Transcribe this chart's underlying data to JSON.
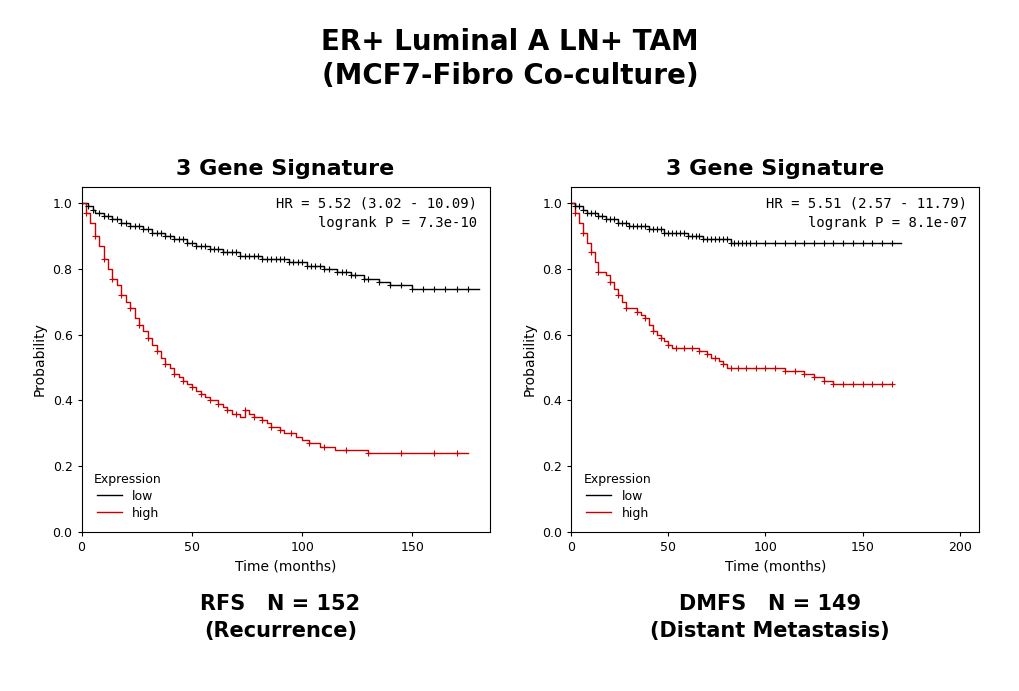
{
  "title_main": "ER+ Luminal A LN+ TAM\n(MCF7-Fibro Co-culture)",
  "title_main_fontsize": 20,
  "subtitle_left": "3 Gene Signature",
  "subtitle_right": "3 Gene Signature",
  "subtitle_fontsize": 16,
  "xlabel": "Time (months)",
  "ylabel": "Probability",
  "left_caption": "RFS   N = 152\n(Recurrence)",
  "right_caption": "DMFS   N = 149\n(Distant Metastasis)",
  "caption_fontsize": 15,
  "annotation_left": "HR = 5.52 (3.02 - 10.09)\nlogrank P = 7.3e-10",
  "annotation_right": "HR = 5.51 (2.57 - 11.79)\nlogrank P = 8.1e-07",
  "annotation_fontsize": 10,
  "legend_title": "Expression",
  "legend_low": "low",
  "legend_high": "high",
  "color_low": "#000000",
  "color_high": "#cc0000",
  "background_color": "#ffffff",
  "left_xlim": [
    0,
    185
  ],
  "left_xticks": [
    0,
    50,
    100,
    150
  ],
  "right_xlim": [
    0,
    210
  ],
  "right_xticks": [
    0,
    50,
    100,
    150,
    200
  ],
  "ylim": [
    0.0,
    1.05
  ],
  "yticks": [
    0.0,
    0.2,
    0.4,
    0.6,
    0.8,
    1.0
  ],
  "left_low_x": [
    0,
    3,
    5,
    6,
    8,
    10,
    12,
    14,
    16,
    18,
    20,
    22,
    24,
    26,
    28,
    30,
    32,
    34,
    36,
    38,
    40,
    42,
    44,
    46,
    48,
    50,
    52,
    54,
    56,
    58,
    60,
    62,
    64,
    66,
    68,
    70,
    72,
    74,
    76,
    78,
    80,
    82,
    84,
    86,
    88,
    90,
    92,
    94,
    96,
    98,
    100,
    102,
    104,
    106,
    108,
    110,
    112,
    114,
    116,
    118,
    120,
    122,
    124,
    126,
    128,
    130,
    135,
    140,
    145,
    150,
    155,
    160,
    165,
    170,
    175,
    180
  ],
  "left_low_y": [
    1.0,
    0.99,
    0.98,
    0.97,
    0.97,
    0.96,
    0.96,
    0.95,
    0.95,
    0.94,
    0.94,
    0.93,
    0.93,
    0.93,
    0.92,
    0.92,
    0.91,
    0.91,
    0.91,
    0.9,
    0.9,
    0.89,
    0.89,
    0.89,
    0.88,
    0.88,
    0.87,
    0.87,
    0.87,
    0.86,
    0.86,
    0.86,
    0.85,
    0.85,
    0.85,
    0.85,
    0.84,
    0.84,
    0.84,
    0.84,
    0.84,
    0.83,
    0.83,
    0.83,
    0.83,
    0.83,
    0.83,
    0.82,
    0.82,
    0.82,
    0.82,
    0.81,
    0.81,
    0.81,
    0.81,
    0.8,
    0.8,
    0.8,
    0.79,
    0.79,
    0.79,
    0.78,
    0.78,
    0.78,
    0.77,
    0.77,
    0.76,
    0.75,
    0.75,
    0.74,
    0.74,
    0.74,
    0.74,
    0.74,
    0.74,
    0.74
  ],
  "left_low_censor_x": [
    3,
    5,
    8,
    10,
    12,
    14,
    16,
    18,
    20,
    22,
    24,
    26,
    28,
    30,
    32,
    34,
    36,
    38,
    40,
    42,
    44,
    46,
    48,
    50,
    52,
    54,
    56,
    58,
    60,
    62,
    64,
    66,
    68,
    70,
    72,
    74,
    76,
    78,
    80,
    82,
    84,
    86,
    88,
    90,
    92,
    94,
    96,
    98,
    100,
    102,
    104,
    106,
    108,
    110,
    112,
    116,
    118,
    120,
    122,
    124,
    128,
    130,
    135,
    140,
    145,
    150,
    155,
    160,
    165,
    170,
    175
  ],
  "left_low_censor_y": [
    0.99,
    0.98,
    0.97,
    0.96,
    0.96,
    0.95,
    0.95,
    0.94,
    0.94,
    0.93,
    0.93,
    0.93,
    0.92,
    0.92,
    0.91,
    0.91,
    0.91,
    0.9,
    0.9,
    0.89,
    0.89,
    0.89,
    0.88,
    0.88,
    0.87,
    0.87,
    0.87,
    0.86,
    0.86,
    0.86,
    0.85,
    0.85,
    0.85,
    0.85,
    0.84,
    0.84,
    0.84,
    0.84,
    0.84,
    0.83,
    0.83,
    0.83,
    0.83,
    0.83,
    0.83,
    0.82,
    0.82,
    0.82,
    0.82,
    0.81,
    0.81,
    0.81,
    0.81,
    0.8,
    0.8,
    0.79,
    0.79,
    0.79,
    0.78,
    0.78,
    0.77,
    0.77,
    0.76,
    0.75,
    0.75,
    0.74,
    0.74,
    0.74,
    0.74,
    0.74,
    0.74
  ],
  "left_high_x": [
    0,
    2,
    4,
    6,
    8,
    10,
    12,
    14,
    16,
    18,
    20,
    22,
    24,
    26,
    28,
    30,
    32,
    34,
    36,
    38,
    40,
    42,
    44,
    46,
    48,
    50,
    52,
    54,
    56,
    58,
    60,
    62,
    64,
    66,
    68,
    70,
    72,
    74,
    76,
    78,
    80,
    82,
    84,
    86,
    88,
    90,
    92,
    95,
    97,
    100,
    103,
    105,
    108,
    110,
    115,
    120,
    125,
    130,
    135,
    140,
    145,
    150,
    155,
    160,
    165,
    170,
    175
  ],
  "left_high_y": [
    1.0,
    0.97,
    0.94,
    0.9,
    0.87,
    0.83,
    0.8,
    0.77,
    0.75,
    0.72,
    0.7,
    0.68,
    0.65,
    0.63,
    0.61,
    0.59,
    0.57,
    0.55,
    0.53,
    0.51,
    0.5,
    0.48,
    0.47,
    0.46,
    0.45,
    0.44,
    0.43,
    0.42,
    0.41,
    0.4,
    0.4,
    0.39,
    0.38,
    0.37,
    0.36,
    0.36,
    0.35,
    0.37,
    0.36,
    0.35,
    0.35,
    0.34,
    0.33,
    0.32,
    0.32,
    0.31,
    0.3,
    0.3,
    0.29,
    0.28,
    0.27,
    0.27,
    0.26,
    0.26,
    0.25,
    0.25,
    0.25,
    0.24,
    0.24,
    0.24,
    0.24,
    0.24,
    0.24,
    0.24,
    0.24,
    0.24,
    0.24
  ],
  "left_high_censor_x": [
    2,
    6,
    10,
    14,
    18,
    22,
    26,
    30,
    34,
    38,
    42,
    46,
    50,
    54,
    58,
    62,
    66,
    70,
    74,
    78,
    82,
    86,
    90,
    95,
    103,
    110,
    120,
    130,
    145,
    160,
    170
  ],
  "left_high_censor_y": [
    0.97,
    0.9,
    0.83,
    0.77,
    0.72,
    0.68,
    0.63,
    0.59,
    0.55,
    0.51,
    0.48,
    0.46,
    0.44,
    0.42,
    0.4,
    0.39,
    0.37,
    0.36,
    0.37,
    0.35,
    0.34,
    0.32,
    0.31,
    0.3,
    0.27,
    0.26,
    0.25,
    0.24,
    0.24,
    0.24,
    0.24
  ],
  "right_low_x": [
    0,
    2,
    4,
    6,
    8,
    10,
    12,
    14,
    16,
    18,
    20,
    22,
    24,
    26,
    28,
    30,
    32,
    34,
    36,
    38,
    40,
    42,
    44,
    46,
    48,
    50,
    52,
    54,
    56,
    58,
    60,
    62,
    64,
    66,
    68,
    70,
    72,
    74,
    76,
    78,
    80,
    82,
    84,
    86,
    88,
    90,
    92,
    95,
    100,
    105,
    110,
    115,
    120,
    125,
    130,
    135,
    140,
    145,
    150,
    155,
    160,
    165,
    170
  ],
  "right_low_y": [
    1.0,
    0.99,
    0.99,
    0.98,
    0.97,
    0.97,
    0.97,
    0.96,
    0.96,
    0.95,
    0.95,
    0.95,
    0.94,
    0.94,
    0.94,
    0.93,
    0.93,
    0.93,
    0.93,
    0.93,
    0.92,
    0.92,
    0.92,
    0.92,
    0.91,
    0.91,
    0.91,
    0.91,
    0.91,
    0.91,
    0.9,
    0.9,
    0.9,
    0.9,
    0.89,
    0.89,
    0.89,
    0.89,
    0.89,
    0.89,
    0.89,
    0.88,
    0.88,
    0.88,
    0.88,
    0.88,
    0.88,
    0.88,
    0.88,
    0.88,
    0.88,
    0.88,
    0.88,
    0.88,
    0.88,
    0.88,
    0.88,
    0.88,
    0.88,
    0.88,
    0.88,
    0.88,
    0.88
  ],
  "right_low_censor_x": [
    2,
    4,
    6,
    8,
    10,
    12,
    14,
    16,
    18,
    20,
    22,
    24,
    26,
    28,
    30,
    32,
    34,
    36,
    38,
    40,
    42,
    44,
    46,
    48,
    50,
    52,
    54,
    56,
    58,
    60,
    62,
    64,
    66,
    68,
    70,
    72,
    74,
    76,
    78,
    80,
    82,
    84,
    86,
    88,
    90,
    92,
    95,
    100,
    105,
    110,
    115,
    120,
    125,
    130,
    135,
    140,
    145,
    150,
    155,
    160,
    165
  ],
  "right_low_censor_y": [
    0.99,
    0.99,
    0.98,
    0.97,
    0.97,
    0.97,
    0.96,
    0.96,
    0.95,
    0.95,
    0.95,
    0.94,
    0.94,
    0.94,
    0.93,
    0.93,
    0.93,
    0.93,
    0.93,
    0.92,
    0.92,
    0.92,
    0.92,
    0.91,
    0.91,
    0.91,
    0.91,
    0.91,
    0.91,
    0.9,
    0.9,
    0.9,
    0.9,
    0.89,
    0.89,
    0.89,
    0.89,
    0.89,
    0.89,
    0.89,
    0.88,
    0.88,
    0.88,
    0.88,
    0.88,
    0.88,
    0.88,
    0.88,
    0.88,
    0.88,
    0.88,
    0.88,
    0.88,
    0.88,
    0.88,
    0.88,
    0.88,
    0.88,
    0.88,
    0.88,
    0.88
  ],
  "right_high_x": [
    0,
    2,
    4,
    6,
    8,
    10,
    12,
    14,
    16,
    18,
    20,
    22,
    24,
    26,
    28,
    30,
    32,
    34,
    36,
    38,
    40,
    42,
    44,
    46,
    48,
    50,
    52,
    54,
    56,
    58,
    60,
    62,
    64,
    66,
    68,
    70,
    72,
    74,
    76,
    78,
    80,
    82,
    84,
    86,
    88,
    90,
    92,
    95,
    100,
    105,
    110,
    115,
    120,
    125,
    130,
    135,
    140,
    145,
    150,
    155,
    160,
    165
  ],
  "right_high_y": [
    1.0,
    0.97,
    0.94,
    0.91,
    0.88,
    0.85,
    0.82,
    0.79,
    0.79,
    0.78,
    0.76,
    0.74,
    0.72,
    0.7,
    0.68,
    0.68,
    0.68,
    0.67,
    0.66,
    0.65,
    0.63,
    0.61,
    0.6,
    0.59,
    0.58,
    0.57,
    0.56,
    0.56,
    0.56,
    0.56,
    0.56,
    0.56,
    0.56,
    0.55,
    0.55,
    0.54,
    0.53,
    0.53,
    0.52,
    0.51,
    0.5,
    0.5,
    0.5,
    0.5,
    0.5,
    0.5,
    0.5,
    0.5,
    0.5,
    0.5,
    0.49,
    0.49,
    0.48,
    0.47,
    0.46,
    0.45,
    0.45,
    0.45,
    0.45,
    0.45,
    0.45,
    0.45
  ],
  "right_high_censor_x": [
    2,
    6,
    10,
    14,
    20,
    24,
    28,
    34,
    38,
    42,
    46,
    50,
    54,
    58,
    62,
    66,
    70,
    74,
    78,
    82,
    86,
    90,
    95,
    100,
    105,
    110,
    115,
    120,
    125,
    130,
    135,
    140,
    145,
    150,
    155,
    160,
    165
  ],
  "right_high_censor_y": [
    0.97,
    0.91,
    0.85,
    0.79,
    0.76,
    0.72,
    0.68,
    0.67,
    0.65,
    0.61,
    0.59,
    0.57,
    0.56,
    0.56,
    0.56,
    0.55,
    0.54,
    0.53,
    0.51,
    0.5,
    0.5,
    0.5,
    0.5,
    0.5,
    0.5,
    0.49,
    0.49,
    0.48,
    0.47,
    0.46,
    0.45,
    0.45,
    0.45,
    0.45,
    0.45,
    0.45,
    0.45
  ]
}
